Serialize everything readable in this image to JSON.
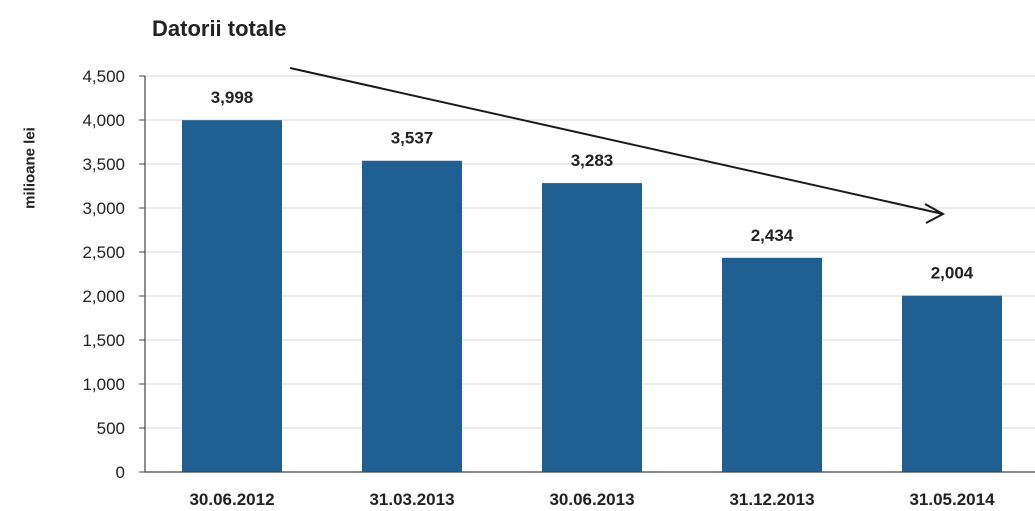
{
  "chart_data": {
    "type": "bar",
    "title": "Datorii totale",
    "ylabel": "milioane lei",
    "xlabel": "",
    "categories": [
      "30.06.2012",
      "31.03.2013",
      "30.06.2013",
      "31.12.2013",
      "31.05.2014"
    ],
    "values": [
      3998,
      3537,
      3283,
      2434,
      2004
    ],
    "value_labels": [
      "3,998",
      "3,537",
      "3,283",
      "2,434",
      "2,004"
    ],
    "y_ticks": [
      0,
      500,
      1000,
      1500,
      2000,
      2500,
      3000,
      3500,
      4000,
      4500
    ],
    "y_tick_labels": [
      "0",
      "500",
      "1,000",
      "1,500",
      "2,000",
      "2,500",
      "3,000",
      "3,500",
      "4,000",
      "4,500"
    ],
    "ylim": [
      0,
      4500
    ],
    "grid": true,
    "legend": "none",
    "annotations": [
      "downward trend arrow"
    ],
    "colors": {
      "bar": "#1f5f92",
      "grid": "#d9d9d9",
      "axis": "#444444",
      "text": "#222222"
    }
  }
}
